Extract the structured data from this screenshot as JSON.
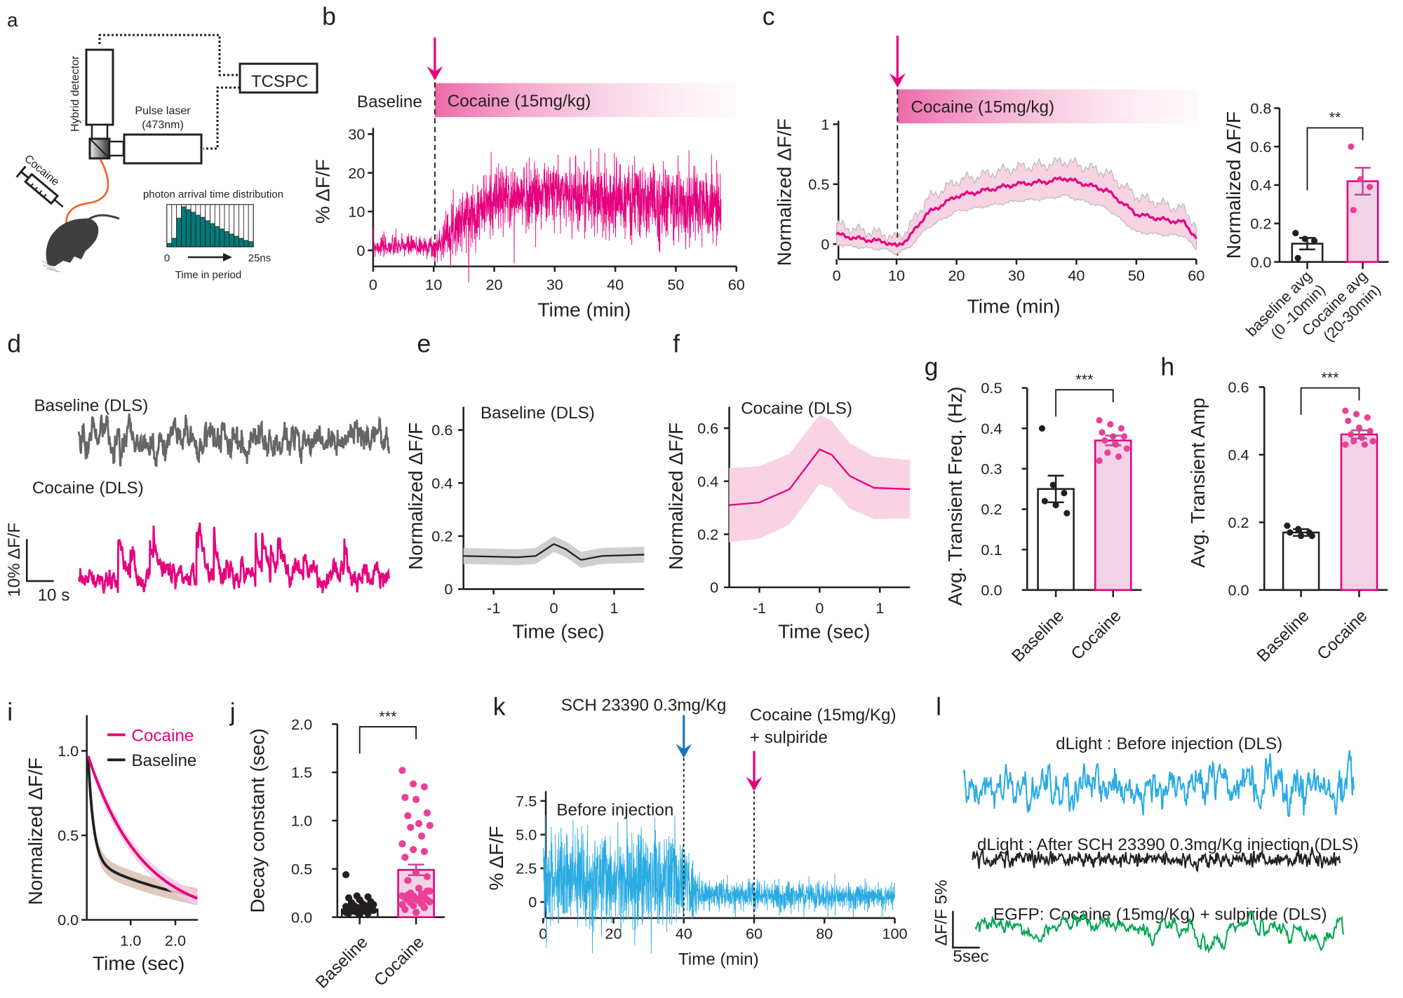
{
  "colors": {
    "cocaine": "#e6007e",
    "cocaine_light": "#f5c4dc",
    "bar_fill": "#f2d3e5",
    "baseline": "#231f20",
    "gray_trace": "#666666",
    "dlight_blue": "#29abe2",
    "egfp_green": "#00a651",
    "sch_arrow": "#1b75bc",
    "histogram": "#007a78",
    "fiber": "#f15a24"
  },
  "panel_labels": {
    "a": "a",
    "b": "b",
    "c": "c",
    "d": "d",
    "e": "e",
    "f": "f",
    "g": "g",
    "h": "h",
    "i": "i",
    "j": "j",
    "k": "k",
    "l": "l"
  },
  "panel_a": {
    "tcspc": "TCSPC",
    "detector": "Hybrid detector",
    "laser": "Pulse laser",
    "laser_wavelength": "(473nm)",
    "drug": "Cocaine",
    "histogram_title": "photon arrival time distribution",
    "histogram_start": "0",
    "histogram_end": "25ns",
    "histogram_xlabel": "Time in period",
    "histogram_values": [
      0.08,
      0.2,
      0.68,
      0.95,
      0.88,
      0.82,
      0.75,
      0.7,
      0.62,
      0.55,
      0.48,
      0.42,
      0.36,
      0.3,
      0.25,
      0.2,
      0.15,
      0.12
    ]
  },
  "chart_data": [
    {
      "id": "b",
      "type": "line",
      "xlabel": "Time (min)",
      "ylabel": "% ΔF/F",
      "xlim": [
        0,
        60
      ],
      "ylim": [
        0,
        30
      ],
      "xticks": [
        "0",
        "10",
        "20",
        "30",
        "40",
        "50",
        "60"
      ],
      "yticks": [
        "0",
        "10",
        "20",
        "30"
      ],
      "baseline_label": "Baseline",
      "injection_label": "Cocaine (15mg/kg)",
      "injection_time": 10,
      "trend": [
        [
          0,
          1
        ],
        [
          9.5,
          1
        ],
        [
          10,
          0
        ],
        [
          13,
          6
        ],
        [
          20,
          13
        ],
        [
          30,
          15
        ],
        [
          40,
          13
        ],
        [
          50,
          12
        ],
        [
          57,
          11
        ]
      ],
      "noise": [
        [
          0,
          1.3
        ],
        [
          10,
          1.5
        ],
        [
          15,
          4
        ],
        [
          57,
          5
        ]
      ]
    },
    {
      "id": "c",
      "type": "line",
      "xlabel": "Time (min)",
      "ylabel": "Normalized ΔF/F",
      "xlim": [
        0,
        60
      ],
      "ylim": [
        0,
        1
      ],
      "xticks": [
        "0",
        "10",
        "20",
        "30",
        "40",
        "50",
        "60"
      ],
      "yticks": [
        "0",
        "0.5",
        "1"
      ],
      "injection_label": "Cocaine (15mg/kg)",
      "injection_time": 10,
      "mean": [
        [
          0,
          0.08
        ],
        [
          3,
          0.05
        ],
        [
          6,
          0.03
        ],
        [
          8,
          0.02
        ],
        [
          10,
          -0.02
        ],
        [
          12,
          0.05
        ],
        [
          15,
          0.25
        ],
        [
          20,
          0.4
        ],
        [
          25,
          0.45
        ],
        [
          30,
          0.5
        ],
        [
          35,
          0.52
        ],
        [
          38,
          0.55
        ],
        [
          40,
          0.52
        ],
        [
          45,
          0.45
        ],
        [
          50,
          0.25
        ],
        [
          55,
          0.2
        ],
        [
          58,
          0.18
        ],
        [
          60,
          0.05
        ]
      ],
      "sem": [
        [
          0,
          0.08
        ],
        [
          10,
          0.06
        ],
        [
          15,
          0.12
        ],
        [
          30,
          0.14
        ],
        [
          50,
          0.15
        ],
        [
          60,
          0.1
        ]
      ]
    },
    {
      "id": "c_inset",
      "type": "bar",
      "ylabel": "Normalized ΔF/F",
      "ylim": [
        0,
        0.8
      ],
      "yticks": [
        "0.0",
        "0.2",
        "0.4",
        "0.6",
        "0.8"
      ],
      "categories": [
        [
          "baseline avg",
          "(0 -10min)"
        ],
        [
          "Cocaine avg",
          "(20-30min)"
        ]
      ],
      "values": [
        0.095,
        0.42
      ],
      "errors": [
        0.03,
        0.07
      ],
      "points": [
        [
          0.15,
          0.12,
          0.11,
          0.02
        ],
        [
          0.6,
          0.43,
          0.39,
          0.27
        ]
      ],
      "significance": "**"
    },
    {
      "id": "d",
      "type": "line",
      "traces": [
        {
          "name": "Baseline (DLS)",
          "noise_sd": 2.2,
          "spikes": false
        },
        {
          "name": "Cocaine (DLS)",
          "noise_sd": 1.5,
          "spikes": true,
          "spike_amp": 12
        }
      ],
      "scale_y": "10% ΔF/F",
      "scale_x": "10 s",
      "duration_s": 116
    },
    {
      "id": "e",
      "type": "line",
      "title": "Baseline (DLS)",
      "xlabel": "Time (sec)",
      "ylabel": "Normalized ΔF/F",
      "xlim": [
        -1.5,
        1.5
      ],
      "ylim": [
        0,
        0.6
      ],
      "xticks": [
        "-1",
        "0",
        "1"
      ],
      "yticks": [
        "0",
        "0.2",
        "0.4",
        "0.6"
      ],
      "mean": [
        [
          -1.5,
          0.125
        ],
        [
          -0.6,
          0.12
        ],
        [
          -0.3,
          0.125
        ],
        [
          0,
          0.17
        ],
        [
          0.2,
          0.15
        ],
        [
          0.45,
          0.11
        ],
        [
          0.8,
          0.125
        ],
        [
          1.5,
          0.13
        ]
      ],
      "sem": [
        [
          -1.5,
          0.03
        ],
        [
          1.5,
          0.03
        ]
      ]
    },
    {
      "id": "f",
      "type": "line",
      "title": "Cocaine (DLS)",
      "xlabel": "Time (sec)",
      "ylabel": "Normalized ΔF/F",
      "xlim": [
        -1.5,
        1.5
      ],
      "ylim": [
        0,
        0.6
      ],
      "xticks": [
        "-1",
        "0",
        "1"
      ],
      "yticks": [
        "0",
        "0.2",
        "0.4",
        "0.6"
      ],
      "mean": [
        [
          -1.5,
          0.31
        ],
        [
          -1,
          0.32
        ],
        [
          -0.5,
          0.37
        ],
        [
          -0.2,
          0.46
        ],
        [
          0,
          0.52
        ],
        [
          0.2,
          0.5
        ],
        [
          0.5,
          0.42
        ],
        [
          0.9,
          0.375
        ],
        [
          1.5,
          0.37
        ]
      ],
      "sem": [
        [
          -1.5,
          0.14
        ],
        [
          0,
          0.13
        ],
        [
          1.5,
          0.11
        ]
      ]
    },
    {
      "id": "g",
      "type": "bar",
      "ylabel": "Avg. Transient Freq. (Hz)",
      "ylim": [
        0,
        0.5
      ],
      "yticks": [
        "0.0",
        "0.1",
        "0.2",
        "0.3",
        "0.4",
        "0.5"
      ],
      "categories": [
        "Baseline",
        "Cocaine"
      ],
      "values": [
        0.25,
        0.37
      ],
      "errors": [
        0.033,
        0.012
      ],
      "points": [
        [
          0.4,
          0.26,
          0.24,
          0.22,
          0.21,
          0.19
        ],
        [
          0.42,
          0.41,
          0.4,
          0.39,
          0.38,
          0.38,
          0.37,
          0.36,
          0.35,
          0.34,
          0.33,
          0.32
        ]
      ],
      "significance": "***"
    },
    {
      "id": "h",
      "type": "bar",
      "ylabel": "Avg. Transient Amp",
      "ylim": [
        0,
        0.6
      ],
      "yticks": [
        "0.0",
        "0.2",
        "0.4",
        "0.6"
      ],
      "categories": [
        "Baseline",
        "Cocaine"
      ],
      "values": [
        0.17,
        0.46
      ],
      "errors": [
        0.01,
        0.012
      ],
      "points": [
        [
          0.19,
          0.18,
          0.17,
          0.17,
          0.16,
          0.16
        ],
        [
          0.53,
          0.52,
          0.51,
          0.5,
          0.48,
          0.47,
          0.46,
          0.45,
          0.44,
          0.44,
          0.43,
          0.43
        ]
      ],
      "significance": "***"
    },
    {
      "id": "i",
      "type": "line",
      "xlabel": "Time (sec)",
      "ylabel": "Normalized ΔF/F",
      "xlim": [
        0,
        2.5
      ],
      "ylim": [
        0,
        1.0
      ],
      "xticks": [
        "1.0",
        "2.0"
      ],
      "yticks": [
        "0.0",
        "0.5",
        "1.0"
      ],
      "series": [
        {
          "name": "Cocaine",
          "tau_fast": 1.2,
          "band": 0.04
        },
        {
          "name": "Baseline",
          "tau_fast": 0.12,
          "band": 0.05
        }
      ]
    },
    {
      "id": "j",
      "type": "bar",
      "ylabel": "Decay constant (sec)",
      "ylim": [
        0,
        2.0
      ],
      "yticks": [
        "0.0",
        "0.5",
        "1.0",
        "1.5",
        "2.0"
      ],
      "categories": [
        "Baseline",
        "Cocaine"
      ],
      "values": [
        0.08,
        0.49
      ],
      "errors": [
        0.01,
        0.055
      ],
      "points": [
        [
          0.44,
          0.22,
          0.21,
          0.2,
          0.18,
          0.16,
          0.15,
          0.14,
          0.13,
          0.12,
          0.12,
          0.11,
          0.1,
          0.1,
          0.09,
          0.09,
          0.08,
          0.08,
          0.07,
          0.07,
          0.06,
          0.06,
          0.05,
          0.05,
          0.04,
          0.04,
          0.03,
          0.1,
          0.12,
          0.08
        ],
        [
          1.52,
          1.38,
          1.35,
          1.24,
          1.22,
          1.08,
          1.05,
          0.97,
          0.95,
          0.93,
          0.84,
          0.76,
          0.7,
          0.68,
          0.62,
          0.46,
          0.42,
          0.38,
          0.3,
          0.27,
          0.25,
          0.24,
          0.22,
          0.22,
          0.21,
          0.2,
          0.19,
          0.18,
          0.18,
          0.17,
          0.16,
          0.15,
          0.14,
          0.13,
          0.12,
          0.1,
          0.08,
          0.05,
          0.27,
          0.23,
          0.19,
          0.16
        ]
      ],
      "significance": "***"
    },
    {
      "id": "k",
      "type": "line",
      "xlabel": "Time (min)",
      "ylabel": "% ΔF/F",
      "xlim": [
        0,
        100
      ],
      "ylim": [
        0,
        7.5
      ],
      "xticks": [
        "0",
        "20",
        "40",
        "60",
        "80",
        "100"
      ],
      "yticks": [
        "0",
        "2.5",
        "5.0",
        "7.5"
      ],
      "period_label": "Before injection",
      "event1": {
        "label": "SCH 23390 0.3mg/Kg",
        "time": 40
      },
      "event2": {
        "label": "Cocaine (15mg/Kg)",
        "label2": "+ sulpiride",
        "time": 60
      },
      "trend": [
        [
          0,
          1.5
        ],
        [
          40,
          1.5
        ],
        [
          42,
          0.9
        ],
        [
          45,
          0.5
        ],
        [
          100,
          0.4
        ]
      ],
      "noise": [
        [
          0,
          1.8
        ],
        [
          40,
          1.8
        ],
        [
          45,
          0.55
        ],
        [
          100,
          0.45
        ]
      ]
    },
    {
      "id": "l",
      "type": "line",
      "traces": [
        {
          "name": "dLight : Before injection (DLS)",
          "noise_sd": 2.2
        },
        {
          "name": "dLight : After SCH 23390 0.3mg/Kg injection (DLS)",
          "noise_sd": 0.55
        },
        {
          "name": "EGFP: Cocaine (15mg/Kg) + sulpiride (DLS)",
          "noise_sd": 0.45
        }
      ],
      "scale_y": "ΔF/F 5%",
      "scale_x": "5sec"
    }
  ]
}
